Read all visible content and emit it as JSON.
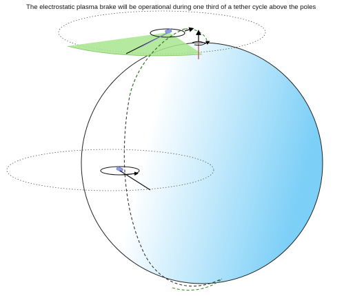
{
  "caption": "The electrostatic plasma brake will be operational during one third of a tether cycle above the poles",
  "colors": {
    "sphere_gradient_start": "#ffffff",
    "sphere_gradient_end": "#7ccff7",
    "sector_fill": "#a8e58f",
    "orbit_dash": "#333333",
    "orbit_highlight": "#3a8f2a",
    "spin_axis": "#c0504d",
    "satellite": "#8f9be8"
  },
  "icons": [
    "spin-direction-arrow-icon",
    "spin-axis-arrow-icon",
    "satellite-icon"
  ]
}
